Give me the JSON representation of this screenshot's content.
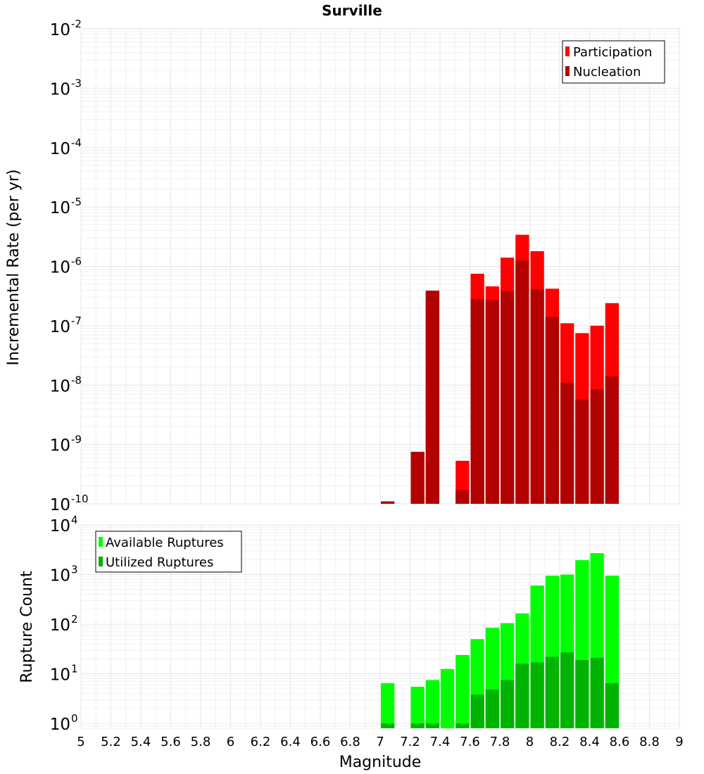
{
  "chart_data": [
    {
      "type": "bar",
      "title": "Surville",
      "xlabel": "",
      "ylabel": "Incremental Rate (per yr)",
      "yscale": "log",
      "xlim": [
        5,
        9
      ],
      "ylim": [
        1e-10,
        0.01
      ],
      "y_tick_exponents": [
        -10,
        -9,
        -8,
        -7,
        -6,
        -5,
        -4,
        -3,
        -2
      ],
      "grid": true,
      "legend_position": "top-right",
      "bin_width": 0.1,
      "x": [
        7.05,
        7.25,
        7.35,
        7.55,
        7.65,
        7.75,
        7.85,
        7.95,
        8.05,
        8.15,
        8.25,
        8.35,
        8.45,
        8.55
      ],
      "series": [
        {
          "name": "Participation",
          "color": "#ff0000",
          "values": [
            1.1e-10,
            7.5e-10,
            3.9e-07,
            5.3e-10,
            7.5e-07,
            4.6e-07,
            1.4e-06,
            3.4e-06,
            1.8e-06,
            4.2e-07,
            1.1e-07,
            7.5e-08,
            1e-07,
            2.4e-07
          ]
        },
        {
          "name": "Nucleation",
          "color": "#b30000",
          "values": [
            1.1e-10,
            7.5e-10,
            3.9e-07,
            1.7e-10,
            2.8e-07,
            2.7e-07,
            3.8e-07,
            1.25e-06,
            4.1e-07,
            1.4e-07,
            1.1e-08,
            5.7e-09,
            8.4e-09,
            1.4e-08
          ]
        }
      ]
    },
    {
      "type": "bar",
      "title": "",
      "xlabel": "Magnitude",
      "ylabel": "Rupture Count",
      "yscale": "log",
      "xlim": [
        5,
        9
      ],
      "ylim": [
        0.8,
        10000
      ],
      "y_tick_exponents": [
        0,
        1,
        2,
        3,
        4
      ],
      "grid": true,
      "legend_position": "top-left",
      "bin_width": 0.1,
      "x_ticks": [
        "5",
        "5.2",
        "5.4",
        "5.6",
        "5.8",
        "6",
        "6.2",
        "6.4",
        "6.6",
        "6.8",
        "7",
        "7.2",
        "7.4",
        "7.6",
        "7.8",
        "8",
        "8.2",
        "8.4",
        "8.6",
        "8.8",
        "9"
      ],
      "x": [
        7.05,
        7.25,
        7.35,
        7.45,
        7.55,
        7.65,
        7.75,
        7.85,
        7.95,
        8.05,
        8.15,
        8.25,
        8.35,
        8.45,
        8.55
      ],
      "series": [
        {
          "name": "Available Ruptures",
          "color": "#00ff00",
          "values": [
            6.5,
            5.5,
            7.5,
            12.5,
            24,
            50,
            85,
            105,
            165,
            600,
            950,
            1000,
            1950,
            2700,
            950
          ]
        },
        {
          "name": "Utilized Ruptures",
          "color": "#00b300",
          "values": [
            1,
            1,
            1,
            0,
            1,
            3.8,
            4.8,
            7.5,
            16,
            17,
            22,
            27,
            19,
            21,
            6.5
          ]
        }
      ]
    }
  ]
}
